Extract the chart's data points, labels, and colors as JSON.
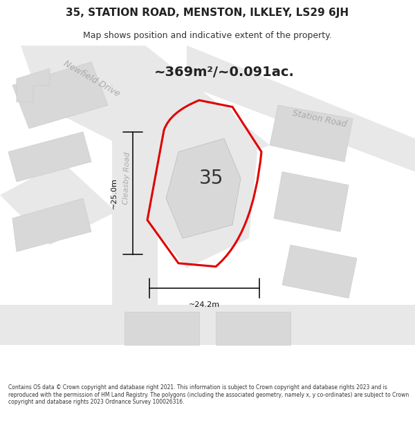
{
  "title": "35, STATION ROAD, MENSTON, ILKLEY, LS29 6JH",
  "subtitle": "Map shows position and indicative extent of the property.",
  "area_text": "~369m²/~0.091ac.",
  "number_label": "35",
  "dim_vertical": "~25.0m",
  "dim_horizontal": "~24.2m",
  "road_label_newfield": "Newfield Drive",
  "road_label_cleasby": "Cleasby Road",
  "road_label_station": "Station Road",
  "footer": "Contains OS data © Crown copyright and database right 2021. This information is subject to Crown copyright and database rights 2023 and is reproduced with the permission of HM Land Registry. The polygons (including the associated geometry, namely x, y co-ordinates) are subject to Crown copyright and database rights 2023 Ordnance Survey 100026316.",
  "bg_color": "#ffffff",
  "map_bg": "#f5f5f5",
  "road_fill": "#e8e8e8",
  "building_fill": "#d8d8d8",
  "red_stroke": "#e00000",
  "highlight_fill": "#e0e0e0",
  "dim_line_color": "#111111",
  "road_text_color": "#aaaaaa",
  "title_color": "#333333"
}
